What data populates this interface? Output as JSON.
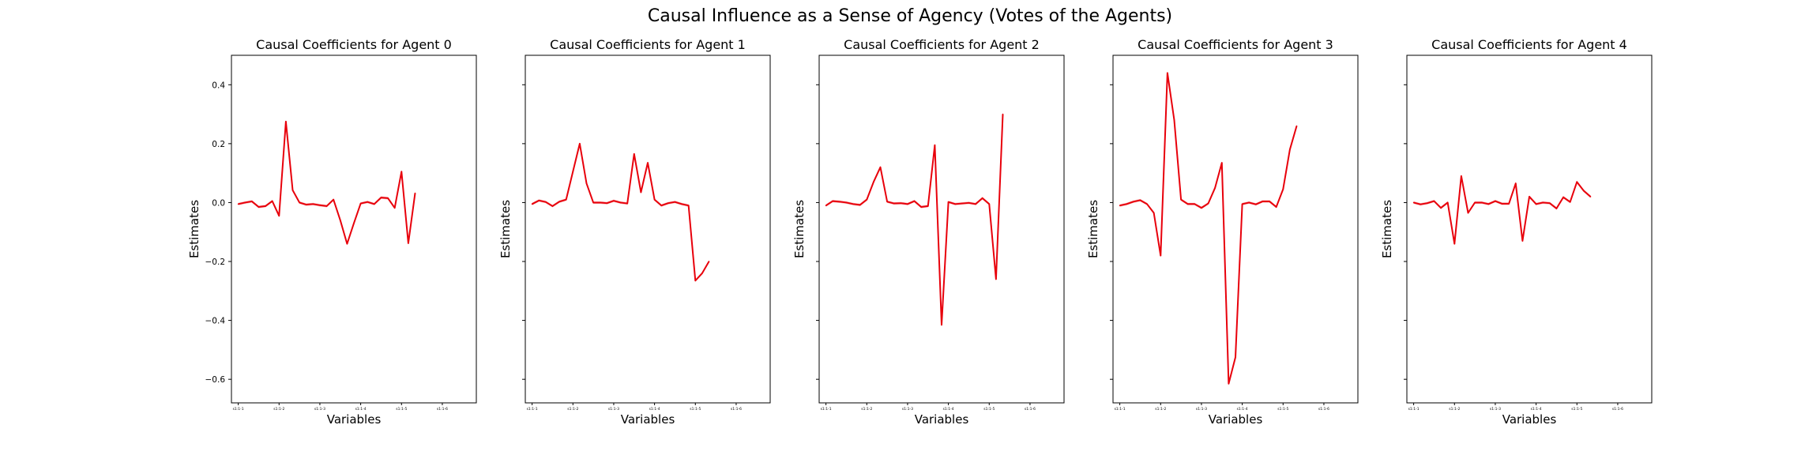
{
  "figure_title": "Causal Influence as a Sense of Agency (Votes of the Agents)",
  "colors": {
    "line": "#e8000b",
    "band": "#f4a3a3",
    "axis": "#000000"
  },
  "chart_data": [
    {
      "type": "line",
      "title": "Causal Coefficients for Agent 0",
      "xlabel": "Variables",
      "ylabel": "Estimates",
      "ylim": [
        -0.68,
        0.5
      ],
      "yticks": [
        -0.6,
        -0.4,
        -0.2,
        0.0,
        0.2,
        0.4
      ],
      "ytick_labels": [
        "−0.6",
        "−0.4",
        "−0.2",
        "0.0",
        "0.2",
        "0.4"
      ],
      "show_ytick_labels": true,
      "x_range": [
        -1,
        35
      ],
      "xticks": [
        {
          "x": 0,
          "label": "s1:1-1"
        },
        {
          "x": 6,
          "label": "s1:1-2"
        },
        {
          "x": 12,
          "label": "s1:1-3"
        },
        {
          "x": 18,
          "label": "s1:1-4"
        },
        {
          "x": 24,
          "label": "s1:1-5"
        },
        {
          "x": 30,
          "label": "s1:1-6"
        }
      ],
      "grid": false,
      "values": [
        -0.005,
        0.0,
        0.004,
        -0.015,
        -0.012,
        0.005,
        -0.045,
        0.275,
        0.042,
        0.0,
        -0.007,
        -0.005,
        -0.009,
        -0.012,
        0.01,
        -0.06,
        -0.14,
        -0.07,
        -0.003,
        0.002,
        -0.005,
        0.017,
        0.015,
        -0.018,
        0.105,
        -0.138,
        0.032
      ]
    },
    {
      "type": "line",
      "title": "Causal Coefficients for Agent 1",
      "xlabel": "Variables",
      "ylabel": "Estimates",
      "ylim": [
        -0.68,
        0.5
      ],
      "yticks": [
        -0.6,
        -0.4,
        -0.2,
        0.0,
        0.2,
        0.4
      ],
      "ytick_labels": [
        "−0.6",
        "−0.4",
        "−0.2",
        "0.0",
        "0.2",
        "0.4"
      ],
      "show_ytick_labels": false,
      "x_range": [
        -1,
        35
      ],
      "xticks": [
        {
          "x": 0,
          "label": "s1:1-1"
        },
        {
          "x": 6,
          "label": "s1:1-2"
        },
        {
          "x": 12,
          "label": "s1:1-3"
        },
        {
          "x": 18,
          "label": "s1:1-4"
        },
        {
          "x": 24,
          "label": "s1:1-5"
        },
        {
          "x": 30,
          "label": "s1:1-6"
        }
      ],
      "grid": false,
      "values": [
        -0.005,
        0.007,
        0.002,
        -0.012,
        0.003,
        0.01,
        0.105,
        0.2,
        0.065,
        0.0,
        0.0,
        -0.002,
        0.006,
        0.0,
        -0.003,
        0.165,
        0.035,
        0.135,
        0.01,
        -0.01,
        -0.002,
        0.002,
        -0.005,
        -0.01,
        -0.265,
        -0.24,
        -0.2
      ]
    },
    {
      "type": "line",
      "title": "Causal Coefficients for Agent 2",
      "xlabel": "Variables",
      "ylabel": "Estimates",
      "ylim": [
        -0.68,
        0.5
      ],
      "yticks": [
        -0.6,
        -0.4,
        -0.2,
        0.0,
        0.2,
        0.4
      ],
      "ytick_labels": [
        "−0.6",
        "−0.4",
        "−0.2",
        "0.0",
        "0.2",
        "0.4"
      ],
      "show_ytick_labels": false,
      "x_range": [
        -1,
        35
      ],
      "xticks": [
        {
          "x": 0,
          "label": "s1:1-1"
        },
        {
          "x": 6,
          "label": "s1:1-2"
        },
        {
          "x": 12,
          "label": "s1:1-3"
        },
        {
          "x": 18,
          "label": "s1:1-4"
        },
        {
          "x": 24,
          "label": "s1:1-5"
        },
        {
          "x": 30,
          "label": "s1:1-6"
        }
      ],
      "grid": false,
      "values": [
        -0.01,
        0.005,
        0.003,
        0.0,
        -0.005,
        -0.008,
        0.01,
        0.07,
        0.12,
        0.003,
        -0.003,
        -0.002,
        -0.005,
        0.005,
        -0.015,
        -0.012,
        0.195,
        -0.415,
        0.002,
        -0.005,
        -0.003,
        -0.001,
        -0.005,
        0.015,
        -0.005,
        -0.26,
        0.3
      ]
    },
    {
      "type": "line",
      "title": "Causal Coefficients for Agent 3",
      "xlabel": "Variables",
      "ylabel": "Estimates",
      "ylim": [
        -0.68,
        0.5
      ],
      "yticks": [
        -0.6,
        -0.4,
        -0.2,
        0.0,
        0.2,
        0.4
      ],
      "ytick_labels": [
        "−0.6",
        "−0.4",
        "−0.2",
        "0.0",
        "0.2",
        "0.4"
      ],
      "show_ytick_labels": false,
      "x_range": [
        -1,
        35
      ],
      "xticks": [
        {
          "x": 0,
          "label": "s1:1-1"
        },
        {
          "x": 6,
          "label": "s1:1-2"
        },
        {
          "x": 12,
          "label": "s1:1-3"
        },
        {
          "x": 18,
          "label": "s1:1-4"
        },
        {
          "x": 24,
          "label": "s1:1-5"
        },
        {
          "x": 30,
          "label": "s1:1-6"
        }
      ],
      "grid": false,
      "values": [
        -0.01,
        -0.005,
        0.003,
        0.008,
        -0.005,
        -0.035,
        -0.18,
        0.44,
        0.28,
        0.01,
        -0.005,
        -0.005,
        -0.018,
        -0.003,
        0.05,
        0.135,
        -0.615,
        -0.525,
        -0.005,
        0.0,
        -0.006,
        0.004,
        0.004,
        -0.015,
        0.045,
        0.18,
        0.26
      ]
    },
    {
      "type": "line",
      "title": "Causal Coefficients for Agent 4",
      "xlabel": "Variables",
      "ylabel": "Estimates",
      "ylim": [
        -0.68,
        0.5
      ],
      "yticks": [
        -0.6,
        -0.4,
        -0.2,
        0.0,
        0.2,
        0.4
      ],
      "ytick_labels": [
        "−0.6",
        "−0.4",
        "−0.2",
        "0.0",
        "0.2",
        "0.4"
      ],
      "show_ytick_labels": false,
      "x_range": [
        -1,
        35
      ],
      "xticks": [
        {
          "x": 0,
          "label": "s1:1-1"
        },
        {
          "x": 6,
          "label": "s1:1-2"
        },
        {
          "x": 12,
          "label": "s1:1-3"
        },
        {
          "x": 18,
          "label": "s1:1-4"
        },
        {
          "x": 24,
          "label": "s1:1-5"
        },
        {
          "x": 30,
          "label": "s1:1-6"
        }
      ],
      "grid": false,
      "values": [
        0.0,
        -0.006,
        -0.002,
        0.005,
        -0.018,
        0.0,
        -0.14,
        0.09,
        -0.035,
        0.0,
        0.0,
        -0.005,
        0.005,
        -0.004,
        -0.004,
        0.065,
        -0.13,
        0.02,
        -0.005,
        0.0,
        -0.002,
        -0.02,
        0.018,
        0.002,
        0.07,
        0.04,
        0.02
      ]
    }
  ]
}
